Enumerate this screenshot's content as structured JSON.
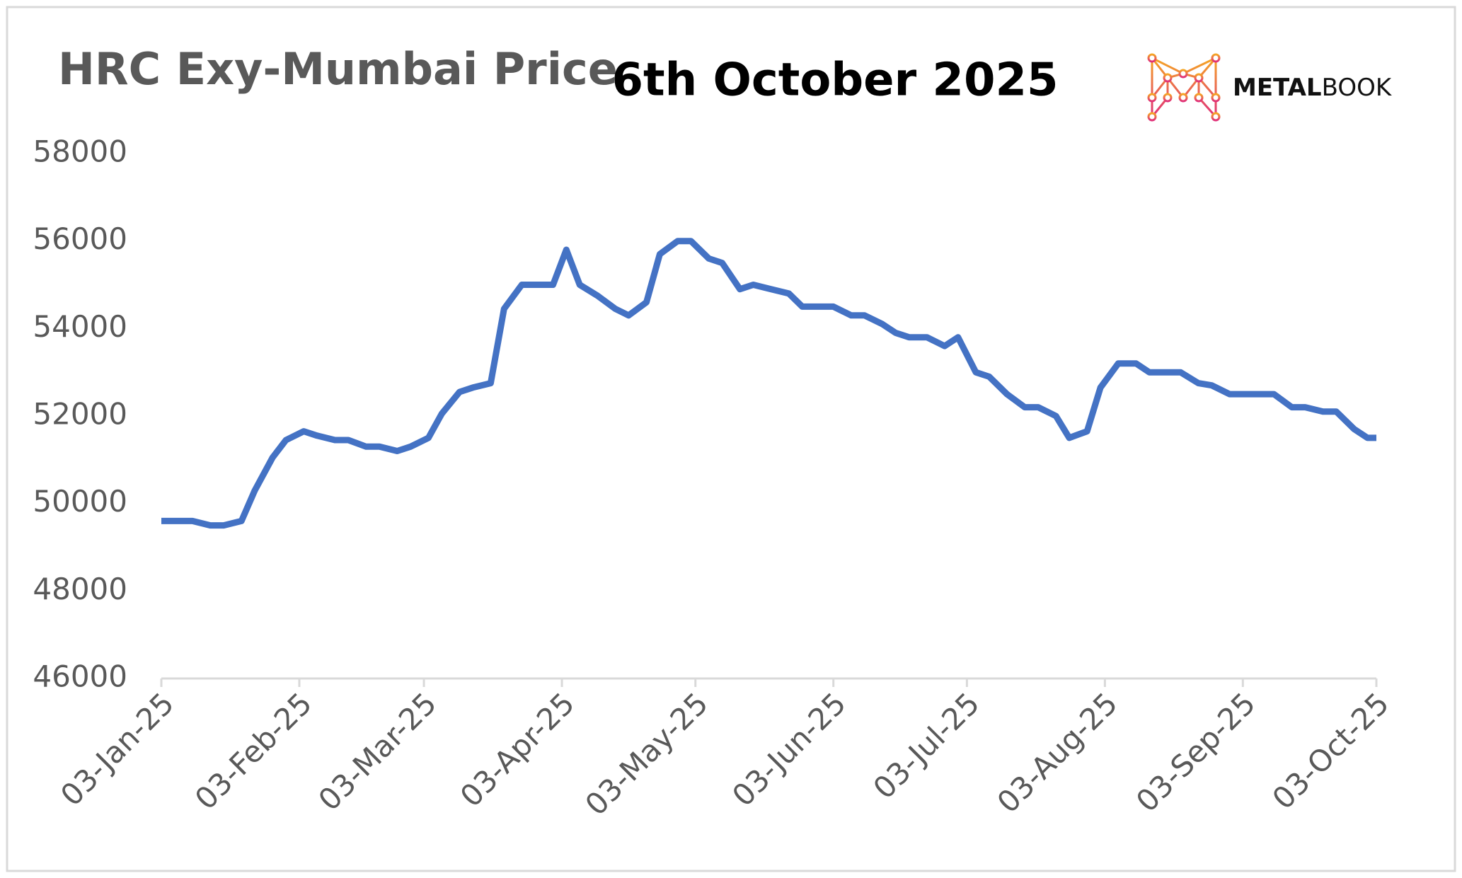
{
  "chart_data": {
    "type": "line",
    "title": "HRC Exy-Mumbai Price",
    "subtitle": "6th October 2025",
    "logo": {
      "bold": "METAL",
      "light": "BOOK"
    },
    "x": [
      "2025-01-03",
      "2025-01-10",
      "2025-01-14",
      "2025-01-17",
      "2025-01-21",
      "2025-01-24",
      "2025-01-28",
      "2025-01-31",
      "2025-02-04",
      "2025-02-07",
      "2025-02-11",
      "2025-02-14",
      "2025-02-18",
      "2025-02-21",
      "2025-02-25",
      "2025-02-28",
      "2025-03-04",
      "2025-03-07",
      "2025-03-11",
      "2025-03-14",
      "2025-03-18",
      "2025-03-21",
      "2025-03-25",
      "2025-03-29",
      "2025-04-01",
      "2025-04-04",
      "2025-04-07",
      "2025-04-11",
      "2025-04-15",
      "2025-04-18",
      "2025-04-22",
      "2025-04-25",
      "2025-04-29",
      "2025-05-02",
      "2025-05-06",
      "2025-05-09",
      "2025-05-13",
      "2025-05-16",
      "2025-05-20",
      "2025-05-24",
      "2025-05-27",
      "2025-05-31",
      "2025-06-03",
      "2025-06-07",
      "2025-06-10",
      "2025-06-14",
      "2025-06-17",
      "2025-06-20",
      "2025-06-24",
      "2025-06-28",
      "2025-07-01",
      "2025-07-05",
      "2025-07-08",
      "2025-07-12",
      "2025-07-16",
      "2025-07-19",
      "2025-07-23",
      "2025-07-26",
      "2025-07-30",
      "2025-08-02",
      "2025-08-06",
      "2025-08-10",
      "2025-08-13",
      "2025-08-16",
      "2025-08-20",
      "2025-08-24",
      "2025-08-27",
      "2025-08-31",
      "2025-09-03",
      "2025-09-07",
      "2025-09-10",
      "2025-09-14",
      "2025-09-17",
      "2025-09-21",
      "2025-09-24",
      "2025-09-28",
      "2025-10-01",
      "2025-10-03"
    ],
    "series": [
      {
        "name": "HRC Exy-Mumbai Price",
        "color": "#4472c4",
        "values": [
          49600,
          49600,
          49500,
          49500,
          49600,
          50300,
          51050,
          51450,
          51650,
          51550,
          51450,
          51450,
          51300,
          51300,
          51200,
          51300,
          51500,
          52050,
          52550,
          52650,
          52750,
          54450,
          55000,
          55000,
          55000,
          55800,
          55000,
          54750,
          54450,
          54300,
          54600,
          55700,
          56000,
          56000,
          55600,
          55500,
          54900,
          55000,
          54900,
          54800,
          54500,
          54500,
          54500,
          54300,
          54300,
          54100,
          53900,
          53800,
          53800,
          53600,
          53800,
          53000,
          52900,
          52500,
          52200,
          52200,
          52000,
          51500,
          51650,
          52650,
          53200,
          53200,
          53000,
          53000,
          53000,
          52750,
          52700,
          52500,
          52500,
          52500,
          52500,
          52200,
          52200,
          52100,
          52100,
          51700,
          51500,
          51500
        ]
      }
    ],
    "xlim": [
      "2025-01-03",
      "2025-10-03"
    ],
    "xticks": [
      {
        "value": "2025-01-03",
        "label": "03-Jan-25"
      },
      {
        "value": "2025-02-03",
        "label": "03-Feb-25"
      },
      {
        "value": "2025-03-03",
        "label": "03-Mar-25"
      },
      {
        "value": "2025-04-03",
        "label": "03-Apr-25"
      },
      {
        "value": "2025-05-03",
        "label": "03-May-25"
      },
      {
        "value": "2025-06-03",
        "label": "03-Jun-25"
      },
      {
        "value": "2025-07-03",
        "label": "03-Jul-25"
      },
      {
        "value": "2025-08-03",
        "label": "03-Aug-25"
      },
      {
        "value": "2025-09-03",
        "label": "03-Sep-25"
      },
      {
        "value": "2025-10-03",
        "label": "03-Oct-25"
      }
    ],
    "ylim": [
      46000,
      58000
    ],
    "yticks": [
      46000,
      48000,
      50000,
      52000,
      54000,
      56000,
      58000
    ],
    "grid": false
  }
}
